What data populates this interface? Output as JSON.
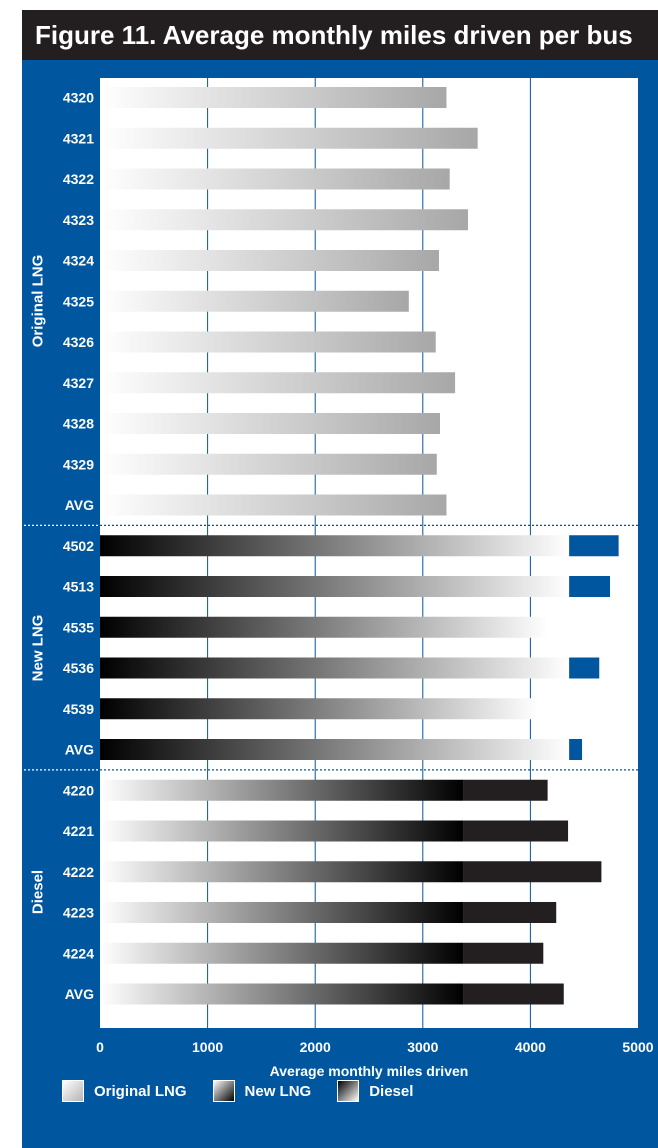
{
  "title": "Figure 11. Average monthly miles driven per bus",
  "colors": {
    "frame_blue": "#0057a0",
    "title_bar": "#231f20",
    "diesel_segment": "#231f20",
    "new_lng_excess_segment": "#0057a0"
  },
  "chart_data": {
    "type": "bar",
    "orientation": "horizontal",
    "xlabel": "Average monthly miles driven",
    "xlim": [
      0,
      5000
    ],
    "xticks": [
      "0",
      "1000",
      "2000",
      "3000",
      "4000",
      "5000"
    ],
    "grid": "vertical gridlines at 1000, 2000, 3000, 4000",
    "legend_placement": "bottom",
    "groups": [
      {
        "name": "Original LNG",
        "series": "Original LNG",
        "categories": [
          "4320",
          "4321",
          "4322",
          "4323",
          "4324",
          "4325",
          "4326",
          "4327",
          "4328",
          "4329",
          "AVG"
        ],
        "values": [
          3220,
          3510,
          3250,
          3420,
          3150,
          2870,
          3120,
          3300,
          3160,
          3130,
          3220
        ]
      },
      {
        "name": "New LNG",
        "series": "New LNG",
        "categories": [
          "4502",
          "4513",
          "4535",
          "4536",
          "4539",
          "AVG"
        ],
        "values": [
          4820,
          4740,
          4160,
          4640,
          4070,
          4480
        ]
      },
      {
        "name": "Diesel",
        "series": "Diesel",
        "categories": [
          "4220",
          "4221",
          "4222",
          "4223",
          "4224",
          "AVG"
        ],
        "values": [
          4160,
          4350,
          4660,
          4240,
          4120,
          4310
        ]
      }
    ],
    "legend": [
      "Original LNG",
      "New LNG",
      "Diesel"
    ]
  }
}
